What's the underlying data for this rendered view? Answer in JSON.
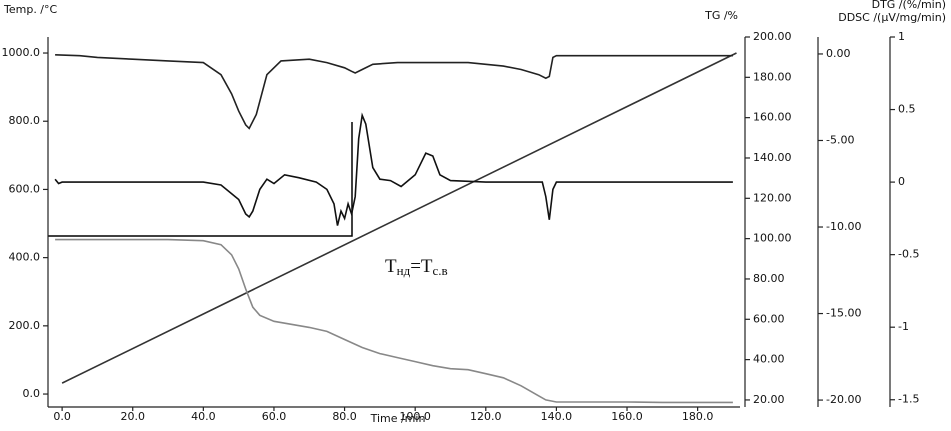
{
  "chart_data": {
    "type": "line",
    "xlabel": "Time /min",
    "xlim": [
      -4,
      192
    ],
    "xticks": [
      {
        "value": 0,
        "label": "0.0"
      },
      {
        "value": 20,
        "label": "20.0"
      },
      {
        "value": 40,
        "label": "40.0"
      },
      {
        "value": 60,
        "label": "60.0"
      },
      {
        "value": 80,
        "label": "80.0"
      },
      {
        "value": 100,
        "label": "100.0"
      },
      {
        "value": 120,
        "label": "120.0"
      },
      {
        "value": 140,
        "label": "140.0"
      },
      {
        "value": 160,
        "label": "160.0"
      },
      {
        "value": 180,
        "label": "180.0"
      }
    ],
    "ylabel": "Temp. /°C",
    "ylim": [
      -38,
      1047
    ],
    "yticks": [
      {
        "value": 0,
        "label": "0.0"
      },
      {
        "value": 200,
        "label": "200.0"
      },
      {
        "value": 400,
        "label": "400.0"
      },
      {
        "value": 600,
        "label": "600.0"
      },
      {
        "value": 800,
        "label": "800.0"
      },
      {
        "value": 1000,
        "label": "1000.0"
      }
    ],
    "y2label": "TG /%",
    "y2lim": [
      16.5,
      200
    ],
    "y2ticks": [
      {
        "value": 20,
        "label": "20.00"
      },
      {
        "value": 40,
        "label": "40.00"
      },
      {
        "value": 60,
        "label": "60.00"
      },
      {
        "value": 80,
        "label": "80.00"
      },
      {
        "value": 100,
        "label": "100.00"
      },
      {
        "value": 120,
        "label": "120.00"
      },
      {
        "value": 140,
        "label": "140.00"
      },
      {
        "value": 160,
        "label": "160.00"
      },
      {
        "value": 180,
        "label": "180.00"
      },
      {
        "value": 200,
        "label": "200.00"
      }
    ],
    "y3label": "DTG /(%/min)",
    "y3lim": [
      -20.4,
      0.98
    ],
    "y3ticks": [
      {
        "value": 0,
        "label": "0.00"
      },
      {
        "value": -5,
        "label": "-5.00"
      },
      {
        "value": -10,
        "label": "-10.00"
      },
      {
        "value": -15,
        "label": "-15.00"
      },
      {
        "value": -20,
        "label": "-20.00"
      }
    ],
    "y4label": "DDSC /(µV/mg/min)",
    "y4lim": [
      -1.55,
      1
    ],
    "y4ticks": [
      1,
      0.5,
      0,
      -0.5,
      -1,
      -1.5
    ],
    "annotation": [
      "T",
      "нд",
      "=T",
      "с.в"
    ],
    "series": [
      {
        "color": "#333333",
        "axis": "y",
        "x": [
          0,
          191
        ],
        "values": [
          32,
          1000
        ]
      },
      {
        "color": "#888888",
        "axis": "y2",
        "x": [
          -2,
          10,
          20,
          30,
          40,
          45,
          48,
          50,
          52,
          54,
          56,
          60,
          70,
          75,
          80,
          85,
          90,
          95,
          100,
          105,
          110,
          115,
          120,
          125,
          130,
          135,
          137,
          140,
          150,
          160,
          170,
          180,
          190
        ],
        "values": [
          99.5,
          99.5,
          99.5,
          99.5,
          99,
          97,
          92,
          85,
          75,
          66,
          62,
          59,
          56,
          54,
          50,
          46,
          43,
          41,
          39,
          37,
          35.5,
          35,
          33,
          31,
          27,
          22,
          20,
          19,
          19,
          19,
          18.8,
          18.8,
          18.8
        ]
      },
      {
        "color": "#222222",
        "axis": "y3",
        "x": [
          -2,
          5,
          10,
          20,
          30,
          40,
          45,
          48,
          50,
          52,
          53,
          55,
          58,
          62,
          70,
          75,
          80,
          82,
          83,
          85,
          88,
          95,
          105,
          115,
          125,
          130,
          135,
          137,
          138,
          139,
          140,
          150,
          160,
          170,
          180,
          190
        ],
        "values": [
          -0.05,
          -0.1,
          -0.2,
          -0.3,
          -0.4,
          -0.5,
          -1.2,
          -2.3,
          -3.3,
          -4.1,
          -4.3,
          -3.5,
          -1.2,
          -0.4,
          -0.3,
          -0.5,
          -0.8,
          -1,
          -1.1,
          -0.9,
          -0.6,
          -0.5,
          -0.5,
          -0.5,
          -0.7,
          -0.9,
          -1.2,
          -1.4,
          -1.3,
          -0.2,
          -0.1,
          -0.1,
          -0.1,
          -0.1,
          -0.1,
          -0.1
        ]
      },
      {
        "color": "#111111",
        "axis": "y4",
        "x": [
          -2,
          -1,
          0,
          10,
          20,
          30,
          40,
          45,
          50,
          52,
          53,
          54,
          56,
          58,
          60,
          63,
          67,
          72,
          75,
          77,
          78,
          79,
          80,
          81,
          82,
          83,
          84,
          85,
          86,
          88,
          90,
          93,
          96,
          100,
          103,
          105,
          107,
          110,
          120,
          130,
          136,
          137,
          138,
          139,
          140,
          150,
          160,
          170,
          180,
          190
        ],
        "values": [
          0.02,
          -0.01,
          0,
          0,
          0,
          0,
          0,
          -0.02,
          -0.12,
          -0.22,
          -0.24,
          -0.2,
          -0.05,
          0.02,
          -0.01,
          0.05,
          0.03,
          0,
          -0.05,
          -0.15,
          -0.3,
          -0.2,
          -0.25,
          -0.15,
          -0.22,
          -0.1,
          0.3,
          0.46,
          0.4,
          0.1,
          0.02,
          0.01,
          -0.03,
          0.05,
          0.2,
          0.18,
          0.05,
          0.01,
          0,
          0,
          0,
          -0.1,
          -0.26,
          -0.05,
          0,
          0,
          0,
          0,
          0,
          0
        ]
      }
    ]
  }
}
